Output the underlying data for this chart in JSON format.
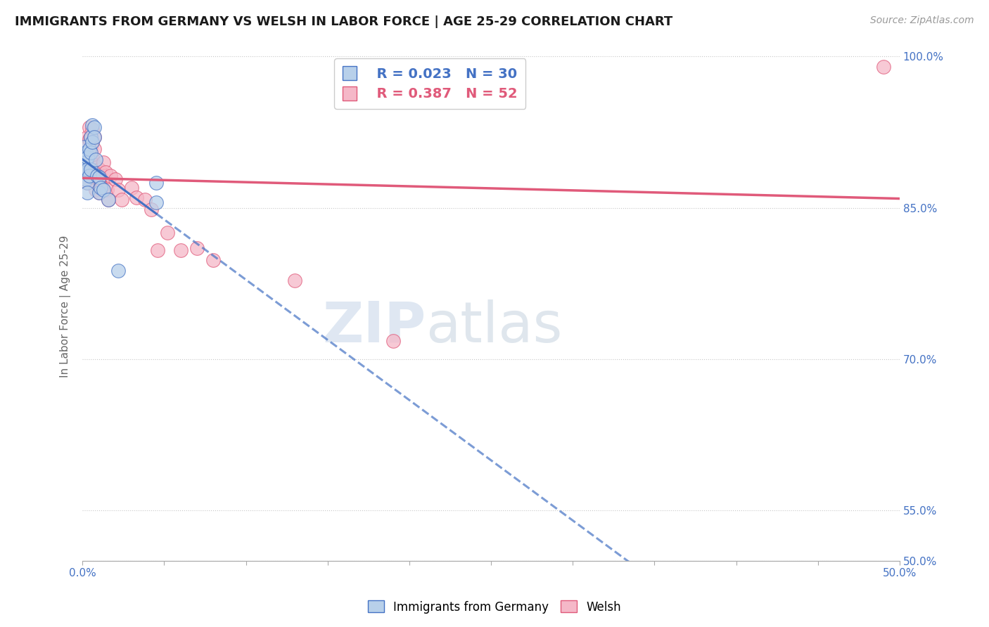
{
  "title": "IMMIGRANTS FROM GERMANY VS WELSH IN LABOR FORCE | AGE 25-29 CORRELATION CHART",
  "source": "Source: ZipAtlas.com",
  "ylabel": "In Labor Force | Age 25-29",
  "xlim": [
    0.0,
    0.5
  ],
  "ylim": [
    0.5,
    1.005
  ],
  "ytick_labels": [
    "50.0%",
    "55.0%",
    "70.0%",
    "85.0%",
    "100.0%"
  ],
  "ytick_positions": [
    0.5,
    0.55,
    0.7,
    0.85,
    1.0
  ],
  "background_color": "#ffffff",
  "grid_color": "#c8c8c8",
  "watermark_zip": "ZIP",
  "watermark_atlas": "atlas",
  "legend_R_germany": "0.023",
  "legend_N_germany": "30",
  "legend_R_welsh": "0.387",
  "legend_N_welsh": "52",
  "germany_color": "#b8d0ea",
  "welsh_color": "#f5b8c8",
  "germany_line_color": "#4472c4",
  "welsh_line_color": "#e05a7a",
  "title_color": "#1a1a1a",
  "label_color": "#4472c4",
  "germany_x": [
    0.001,
    0.001,
    0.001,
    0.002,
    0.002,
    0.002,
    0.002,
    0.003,
    0.003,
    0.003,
    0.003,
    0.004,
    0.004,
    0.005,
    0.005,
    0.005,
    0.006,
    0.006,
    0.007,
    0.007,
    0.008,
    0.009,
    0.01,
    0.01,
    0.011,
    0.013,
    0.016,
    0.022,
    0.045,
    0.045
  ],
  "germany_y": [
    0.91,
    0.9,
    0.888,
    0.905,
    0.895,
    0.885,
    0.878,
    0.9,
    0.888,
    0.875,
    0.865,
    0.908,
    0.882,
    0.92,
    0.905,
    0.888,
    0.932,
    0.915,
    0.93,
    0.92,
    0.898,
    0.882,
    0.88,
    0.865,
    0.87,
    0.868,
    0.858,
    0.788,
    0.855,
    0.875
  ],
  "welsh_x": [
    0.001,
    0.001,
    0.001,
    0.001,
    0.002,
    0.002,
    0.003,
    0.003,
    0.003,
    0.003,
    0.003,
    0.004,
    0.004,
    0.004,
    0.005,
    0.005,
    0.005,
    0.005,
    0.006,
    0.006,
    0.006,
    0.007,
    0.007,
    0.007,
    0.008,
    0.008,
    0.009,
    0.01,
    0.01,
    0.01,
    0.011,
    0.012,
    0.013,
    0.014,
    0.015,
    0.016,
    0.017,
    0.02,
    0.022,
    0.024,
    0.03,
    0.033,
    0.038,
    0.042,
    0.046,
    0.052,
    0.06,
    0.07,
    0.08,
    0.13,
    0.19,
    0.49
  ],
  "welsh_y": [
    0.908,
    0.898,
    0.888,
    0.878,
    0.905,
    0.892,
    0.92,
    0.91,
    0.898,
    0.885,
    0.875,
    0.93,
    0.918,
    0.905,
    0.92,
    0.91,
    0.898,
    0.882,
    0.928,
    0.915,
    0.9,
    0.92,
    0.908,
    0.892,
    0.88,
    0.868,
    0.89,
    0.888,
    0.878,
    0.865,
    0.88,
    0.87,
    0.895,
    0.885,
    0.868,
    0.858,
    0.882,
    0.878,
    0.868,
    0.858,
    0.87,
    0.86,
    0.858,
    0.848,
    0.808,
    0.825,
    0.808,
    0.81,
    0.798,
    0.778,
    0.718,
    0.99
  ]
}
